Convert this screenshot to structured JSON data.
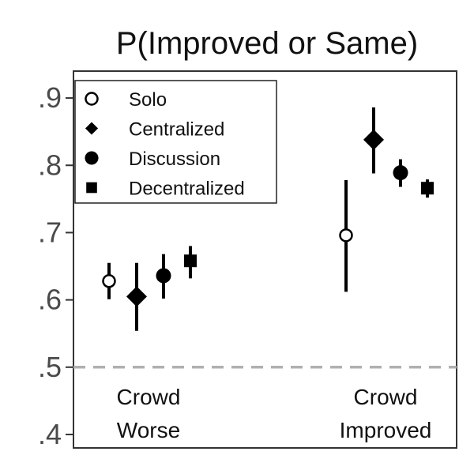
{
  "chart_data": {
    "type": "scatter",
    "title": "P(Improved or Same)",
    "xlabel": "",
    "ylabel": "",
    "ylim": [
      0.38,
      0.94
    ],
    "yticks": [
      {
        "value": 0.4,
        "label": ".4"
      },
      {
        "value": 0.5,
        "label": ".5"
      },
      {
        "value": 0.6,
        "label": ".6"
      },
      {
        "value": 0.7,
        "label": ".7"
      },
      {
        "value": 0.8,
        "label": ".8"
      },
      {
        "value": 0.9,
        "label": ".9"
      }
    ],
    "categories": [
      {
        "lines": [
          "Crowd",
          "Worse"
        ]
      },
      {
        "lines": [
          "Crowd",
          "Improved"
        ]
      }
    ],
    "reference_line": {
      "value": 0.5,
      "style": "dashed",
      "color": "#b0b0b0"
    },
    "legend_position": "top-left",
    "series": [
      {
        "name": "Solo",
        "marker": "open-circle",
        "values": [
          0.628,
          0.696
        ],
        "low": [
          0.601,
          0.612
        ],
        "high": [
          0.655,
          0.778
        ]
      },
      {
        "name": "Centralized",
        "marker": "diamond",
        "values": [
          0.605,
          0.838
        ],
        "low": [
          0.554,
          0.788
        ],
        "high": [
          0.655,
          0.886
        ]
      },
      {
        "name": "Discussion",
        "marker": "circle",
        "values": [
          0.636,
          0.789
        ],
        "low": [
          0.602,
          0.768
        ],
        "high": [
          0.668,
          0.809
        ]
      },
      {
        "name": "Decentralized",
        "marker": "square",
        "values": [
          0.658,
          0.766
        ],
        "low": [
          0.632,
          0.752
        ],
        "high": [
          0.68,
          0.779
        ]
      }
    ]
  }
}
